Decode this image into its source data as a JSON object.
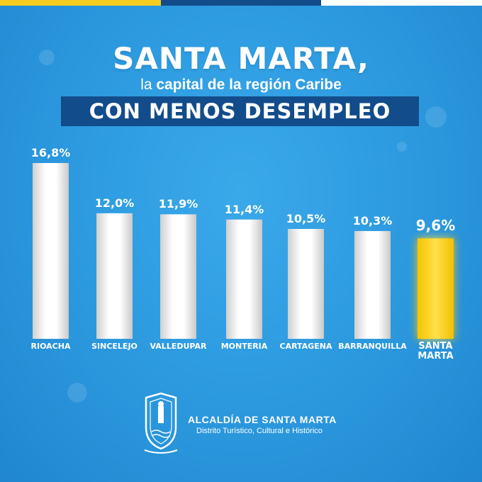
{
  "header": {
    "title_main": "SANTA MARTA,",
    "title_sub_prefix": "la ",
    "title_sub_bold": "capital de la región Caribe",
    "title_box": "CON MENOS DESEMPLEO"
  },
  "colors": {
    "bar": "#ffffff",
    "highlight_bar": "#fcd82c",
    "title_box_bg": "#124c8a",
    "topbar_yellow": "#f6cd1f",
    "topbar_blue": "#124c8a",
    "topbar_white": "#ffffff"
  },
  "chart_data": {
    "type": "bar",
    "title": "",
    "xlabel": "",
    "ylabel": "",
    "ylim": [
      0,
      16.8
    ],
    "grid": false,
    "categories": [
      "RIOACHA",
      "SINCELEJO",
      "VALLEDUPAR",
      "MONTERIA",
      "CARTAGENA",
      "BARRANQUILLA",
      "SANTA MARTA"
    ],
    "values": [
      16.8,
      12.0,
      11.9,
      11.4,
      10.5,
      10.3,
      9.6
    ],
    "value_labels": [
      "16,8%",
      "12,0%",
      "11,9%",
      "11,4%",
      "10,5%",
      "10,3%",
      "9,6%"
    ],
    "highlight": "SANTA MARTA"
  },
  "footer": {
    "org_name": "ALCALDÍA DE SANTA MARTA",
    "org_tagline": "Distrito Turístico, Cultural e Histórico",
    "logo_icon": "coat-of-arms-icon"
  }
}
